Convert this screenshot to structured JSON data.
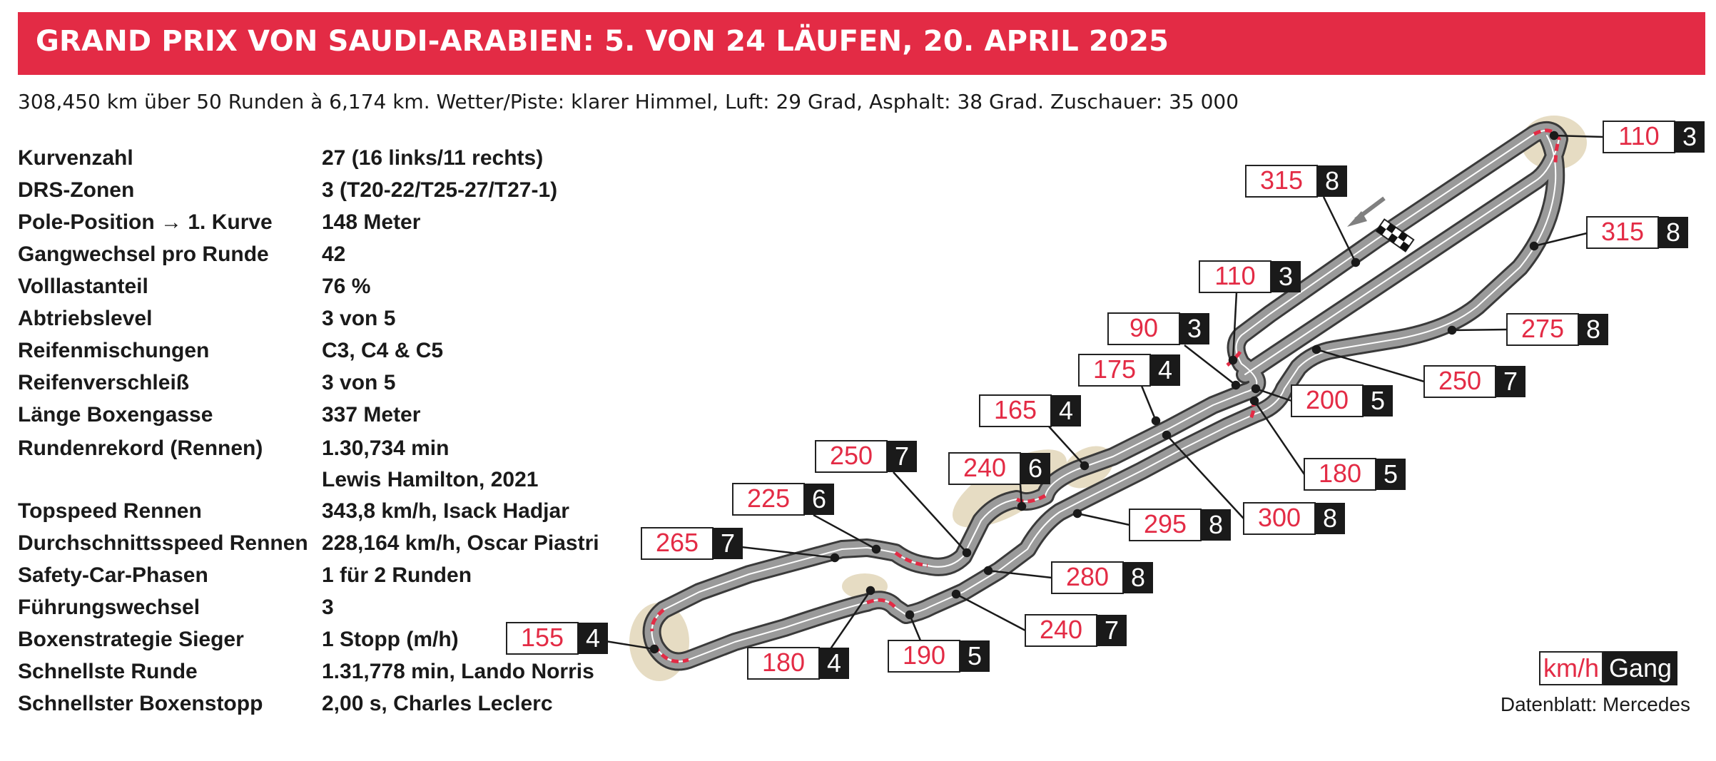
{
  "header": {
    "title": "GRAND PRIX VON SAUDI-ARABIEN: 5. VON 24 LÄUFEN, 20. APRIL 2025",
    "subtitle": "308,450 km über 50 Runden à 6,174 km. Wetter/Piste: klarer Himmel, Luft: 29 Grad, Asphalt: 38 Grad. Zuschauer: 35 000"
  },
  "facts": [
    {
      "label": "Kurvenzahl",
      "value": "27 (16 links/11 rechts)"
    },
    {
      "label": "DRS-Zonen",
      "value": "3 (T20-22/T25-27/T27-1)"
    },
    {
      "label": "Pole-Position → 1. Kurve",
      "value": "148 Meter"
    },
    {
      "label": "Gangwechsel pro Runde",
      "value": "42"
    },
    {
      "label": "Volllastanteil",
      "value": "76 %"
    },
    {
      "label": "Abtriebslevel",
      "value": "3 von 5"
    },
    {
      "label": "Reifenmischungen",
      "value": "C3, C4 & C5"
    },
    {
      "label": "Reifenverschleiß",
      "value": "3 von 5"
    },
    {
      "label": "Länge Boxengasse",
      "value": "337 Meter"
    },
    {
      "label": "Rundenrekord (Rennen)",
      "value": "1.30,734 min",
      "value2": "Lewis Hamilton, 2021"
    },
    {
      "label": "Topspeed Rennen",
      "value": "343,8 km/h,  Isack Hadjar"
    },
    {
      "label": "Durchschnittsspeed Rennen",
      "value": "228,164 km/h, Oscar Piastri"
    },
    {
      "label": "Safety-Car-Phasen",
      "value": "1 für 2 Runden"
    },
    {
      "label": "Führungswechsel",
      "value": "3"
    },
    {
      "label": "Boxenstrategie Sieger",
      "value": "1 Stopp (m/h)"
    },
    {
      "label": "Schnellste Runde",
      "value": "1.31,778 min, Lando Norris"
    },
    {
      "label": "Schnellster Boxenstopp",
      "value": "2,00 s,  Charles Leclerc"
    }
  ],
  "callouts": [
    {
      "speed": "110",
      "gear": "3"
    },
    {
      "speed": "315",
      "gear": "8"
    },
    {
      "speed": "315",
      "gear": "8"
    },
    {
      "speed": "110",
      "gear": "3"
    },
    {
      "speed": "90",
      "gear": "3"
    },
    {
      "speed": "275",
      "gear": "8"
    },
    {
      "speed": "175",
      "gear": "4"
    },
    {
      "speed": "250",
      "gear": "7"
    },
    {
      "speed": "200",
      "gear": "5"
    },
    {
      "speed": "165",
      "gear": "4"
    },
    {
      "speed": "180",
      "gear": "5"
    },
    {
      "speed": "250",
      "gear": "7"
    },
    {
      "speed": "240",
      "gear": "6"
    },
    {
      "speed": "225",
      "gear": "6"
    },
    {
      "speed": "300",
      "gear": "8"
    },
    {
      "speed": "295",
      "gear": "8"
    },
    {
      "speed": "265",
      "gear": "7"
    },
    {
      "speed": "280",
      "gear": "8"
    },
    {
      "speed": "240",
      "gear": "7"
    },
    {
      "speed": "155",
      "gear": "4"
    },
    {
      "speed": "180",
      "gear": "4"
    },
    {
      "speed": "190",
      "gear": "5"
    }
  ],
  "legend": {
    "speed_label": "km/h",
    "gear_label": "Gang"
  },
  "source": "Datenblatt: Mercedes",
  "colors": {
    "accent": "#e32b45",
    "track": "#8c8c8c",
    "runoff": "#e6dcc3",
    "gear_box": "#1a1a1a"
  }
}
